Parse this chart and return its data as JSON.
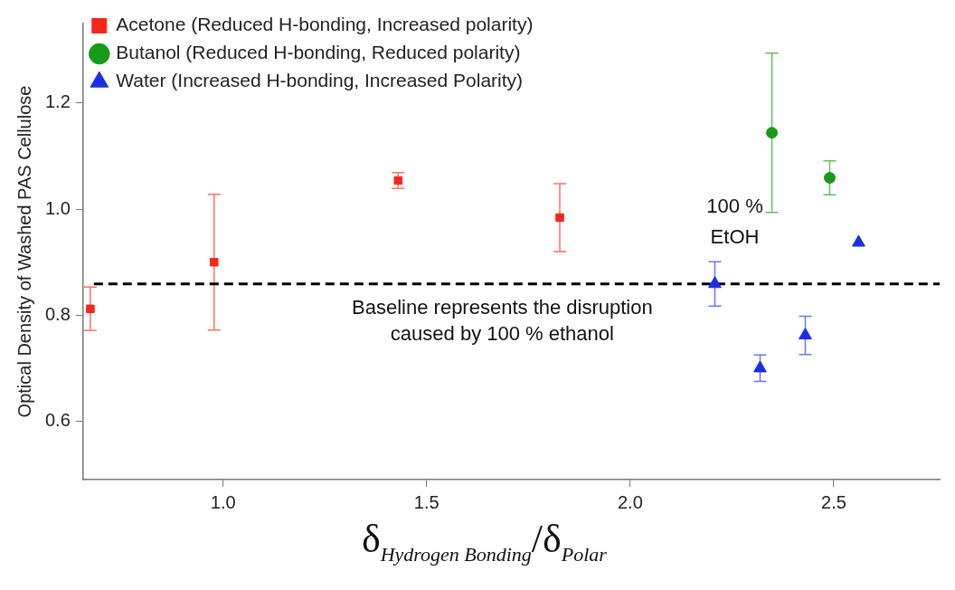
{
  "chart_data": {
    "type": "scatter",
    "ylabel": "Optical Density of Washed PAS Cellulose",
    "xlabel": "δ$_{Hydrogen Bonding}$/δ$_{Polar}$",
    "xlim": [
      0.656,
      2.76
    ],
    "xticks": [
      {
        "value": 1,
        "label": "1.0"
      },
      1.5,
      {
        "value": 2,
        "label": "2.0"
      },
      2.5
    ],
    "ylim": [
      0.49,
      1.35
    ],
    "yticks": [
      0.6,
      0.8,
      {
        "value": 1,
        "label": "1.0"
      },
      1.2
    ],
    "grid": false,
    "legend": "top left",
    "series": [
      {
        "name": "Acetone (Reduced H-bonding, Increased polarity)",
        "color": "#f5261b",
        "marker": "square",
        "x": [
          0.674,
          0.978,
          1.43,
          1.827
        ],
        "values": [
          0.812,
          0.9,
          1.054,
          0.984
        ],
        "errors": [
          0.041,
          0.128,
          0.015,
          0.064
        ]
      },
      {
        "name": "Butanol (Reduced H-bonding, Reduced polarity)",
        "color": "#1a9a1a",
        "marker": "circle",
        "x": [
          2.348,
          2.49
        ],
        "values": [
          1.144,
          1.059
        ],
        "errors": [
          0.15,
          0.032
        ]
      },
      {
        "name": "Water (Increased H-bonding, Increased Polarity)",
        "color": "#1a2ee8",
        "marker": "triangle",
        "x": [
          2.208,
          2.319,
          2.43,
          2.561
        ],
        "values": [
          0.859,
          0.7,
          0.762,
          0.937
        ],
        "errors": [
          0.042,
          0.025,
          0.036,
          null
        ]
      }
    ],
    "ref_lines": [
      {
        "axis": "y",
        "value": 0.859,
        "label": "Baseline represents the disruption\ncaused by 100 % ethanol",
        "color": "#000000",
        "line_style": "dashed"
      }
    ],
    "annotations": [
      {
        "text": "100 %\nEtOH",
        "x": 2.208,
        "y": 0.859
      }
    ]
  }
}
